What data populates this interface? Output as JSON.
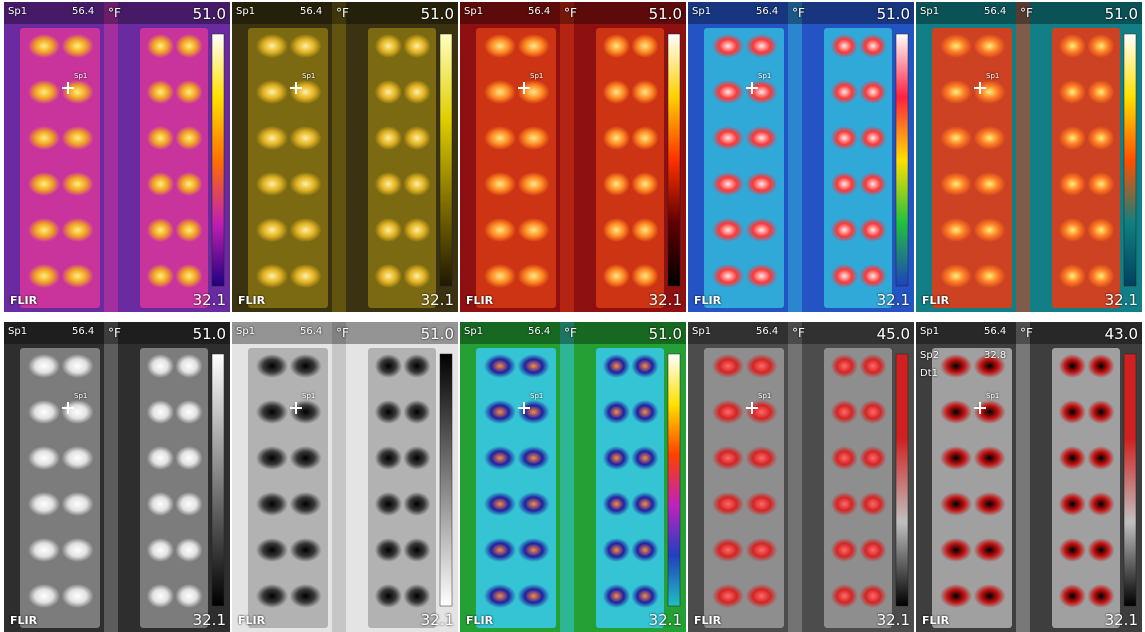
{
  "panels": [
    {
      "spot": "Sp1",
      "reading": "56.4",
      "unit": "°F",
      "max": "51.0",
      "min": "32.1",
      "logo": "FLIR",
      "marker": "Sp1"
    },
    {
      "spot": "Sp1",
      "reading": "56.4",
      "unit": "°F",
      "max": "51.0",
      "min": "32.1",
      "logo": "FLIR",
      "marker": "Sp1"
    },
    {
      "spot": "Sp1",
      "reading": "56.4",
      "unit": "°F",
      "max": "51.0",
      "min": "32.1",
      "logo": "FLIR",
      "marker": "Sp1"
    },
    {
      "spot": "Sp1",
      "reading": "56.4",
      "unit": "°F",
      "max": "51.0",
      "min": "32.1",
      "logo": "FLIR",
      "marker": "Sp1"
    },
    {
      "spot": "Sp1",
      "reading": "56.4",
      "unit": "°F",
      "max": "51.0",
      "min": "32.1",
      "logo": "FLIR",
      "marker": "Sp1"
    },
    {
      "spot": "Sp1",
      "reading": "56.4",
      "unit": "°F",
      "max": "51.0",
      "min": "32.1",
      "logo": "FLIR",
      "marker": "Sp1"
    },
    {
      "spot": "Sp1",
      "reading": "56.4",
      "unit": "°F",
      "max": "51.0",
      "min": "32.1",
      "logo": "FLIR",
      "marker": "Sp1"
    },
    {
      "spot": "Sp1",
      "reading": "56.4",
      "unit": "°F",
      "max": "51.0",
      "min": "32.1",
      "logo": "FLIR",
      "marker": "Sp1"
    },
    {
      "spot": "Sp1",
      "reading": "56.4",
      "unit": "°F",
      "max": "45.0",
      "min": "32.1",
      "logo": "FLIR",
      "marker": "Sp1"
    },
    {
      "spot": "Sp1",
      "reading": "56.4",
      "unit": "°F",
      "max": "43.0",
      "min": "32.1",
      "logo": "FLIR",
      "marker": "Sp1",
      "extra": [
        "Sp2",
        "32.8",
        "Dt1"
      ]
    }
  ]
}
